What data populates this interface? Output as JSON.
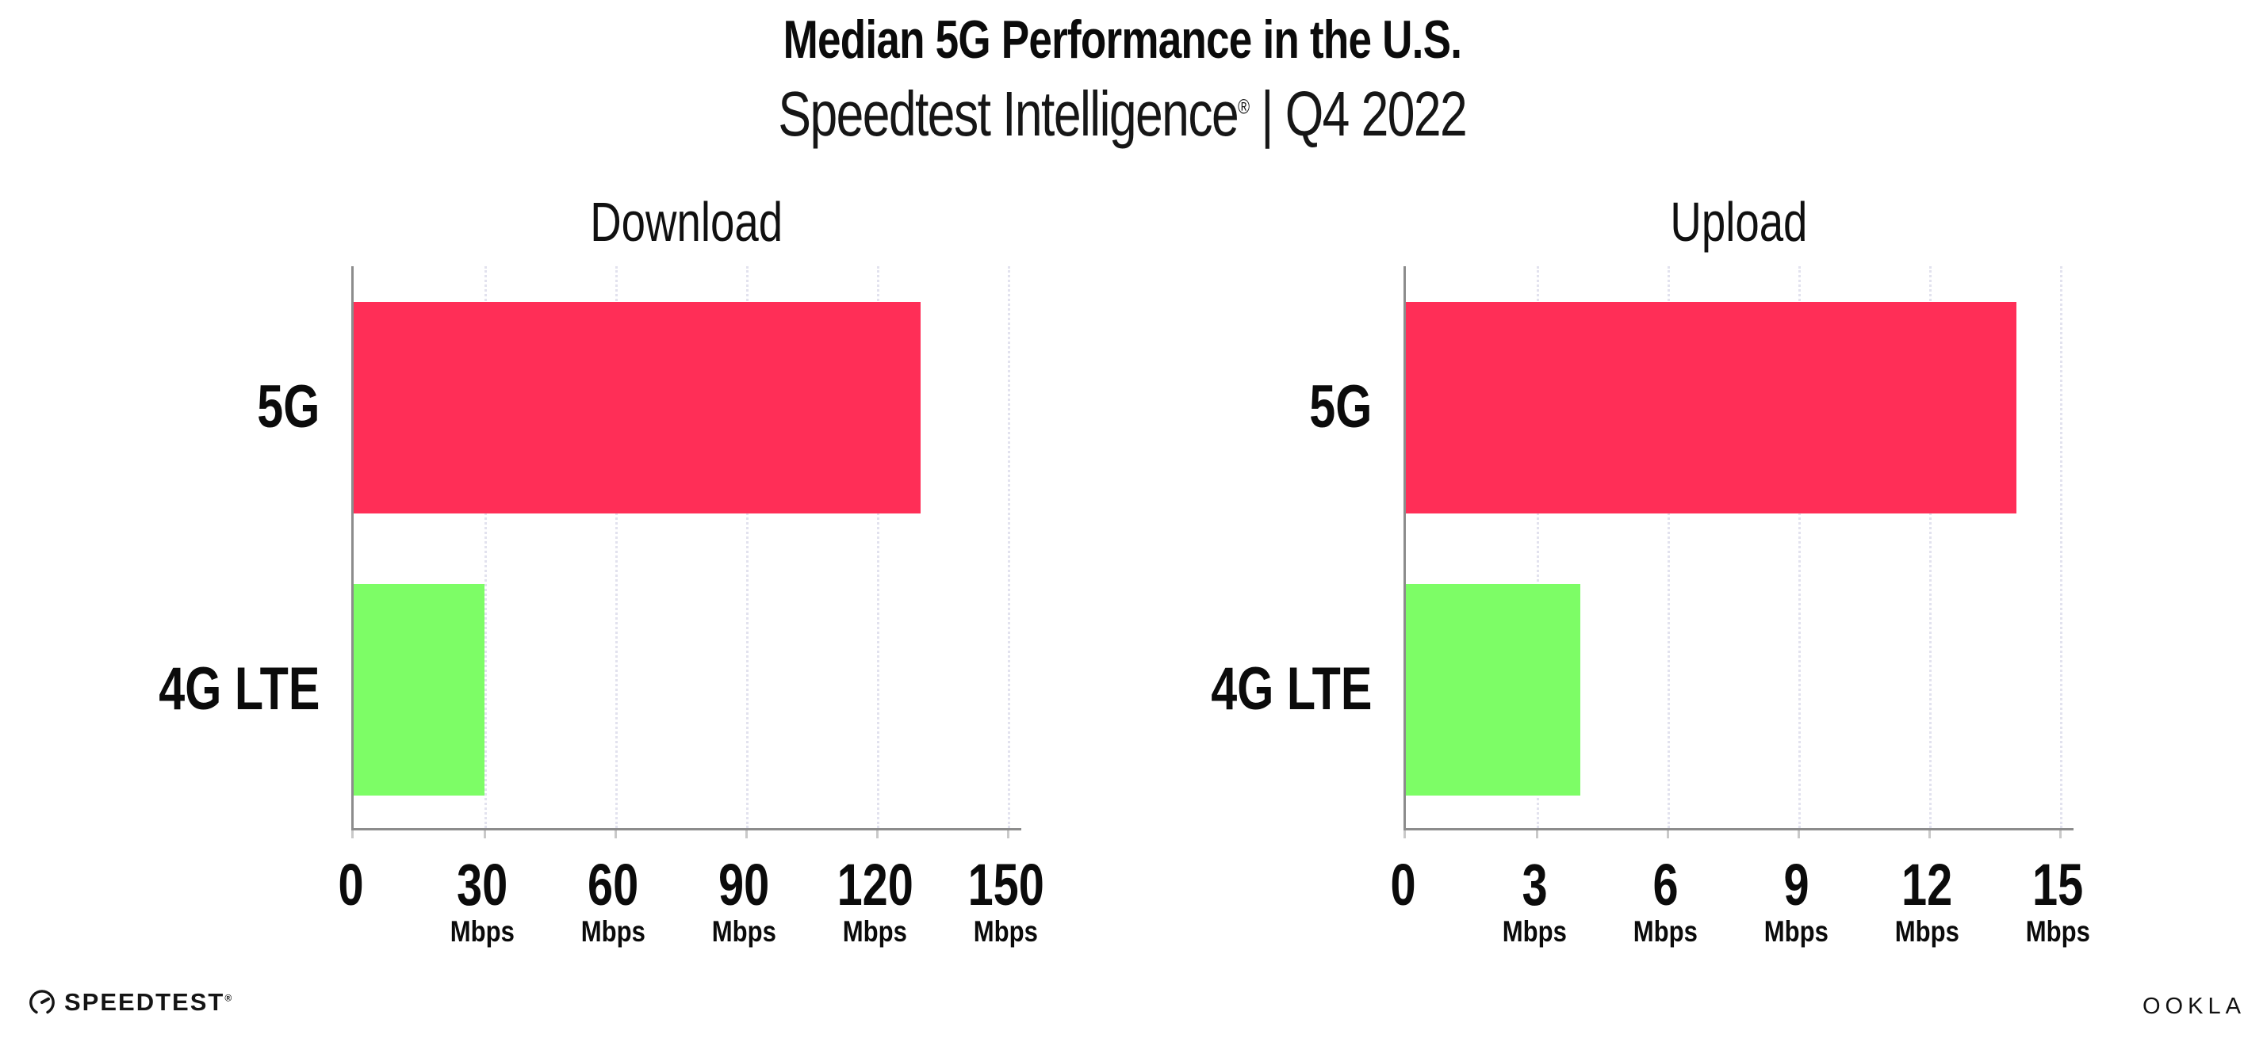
{
  "header": {
    "title": "Median 5G Performance in the U.S.",
    "subtitle_brand": "Speedtest Intelligence",
    "subtitle_reg": "®",
    "subtitle_rest": " | Q4 2022"
  },
  "colors": {
    "bar_5g": "#FF2E57",
    "bar_4g_lte": "#7DFD66",
    "axis": "#8c8c8c",
    "gridline": "#e2e2ee",
    "tick_mark": "#c9c9c9",
    "text": "#0b0b0b"
  },
  "chart_data": [
    {
      "type": "bar",
      "orientation": "horizontal",
      "title": "Download",
      "categories": [
        "5G",
        "4G LTE"
      ],
      "values": [
        130,
        30
      ],
      "unit": "Mbps",
      "xticks": [
        0,
        30,
        60,
        90,
        120,
        150
      ],
      "xlim": [
        0,
        150
      ],
      "grid": "dotted-vertical",
      "legend": "none",
      "bar_colors": [
        "#FF2E57",
        "#7DFD66"
      ]
    },
    {
      "type": "bar",
      "orientation": "horizontal",
      "title": "Upload",
      "categories": [
        "5G",
        "4G LTE"
      ],
      "values": [
        14,
        4
      ],
      "unit": "Mbps",
      "xticks": [
        0,
        3,
        6,
        9,
        12,
        15
      ],
      "xlim": [
        0,
        15
      ],
      "grid": "dotted-vertical",
      "legend": "none",
      "bar_colors": [
        "#FF2E57",
        "#7DFD66"
      ]
    }
  ],
  "footer": {
    "speedtest_label": "SPEEDTEST",
    "speedtest_mark": "®",
    "ookla_label": "OOKLA",
    "ookla_mark": "®"
  }
}
